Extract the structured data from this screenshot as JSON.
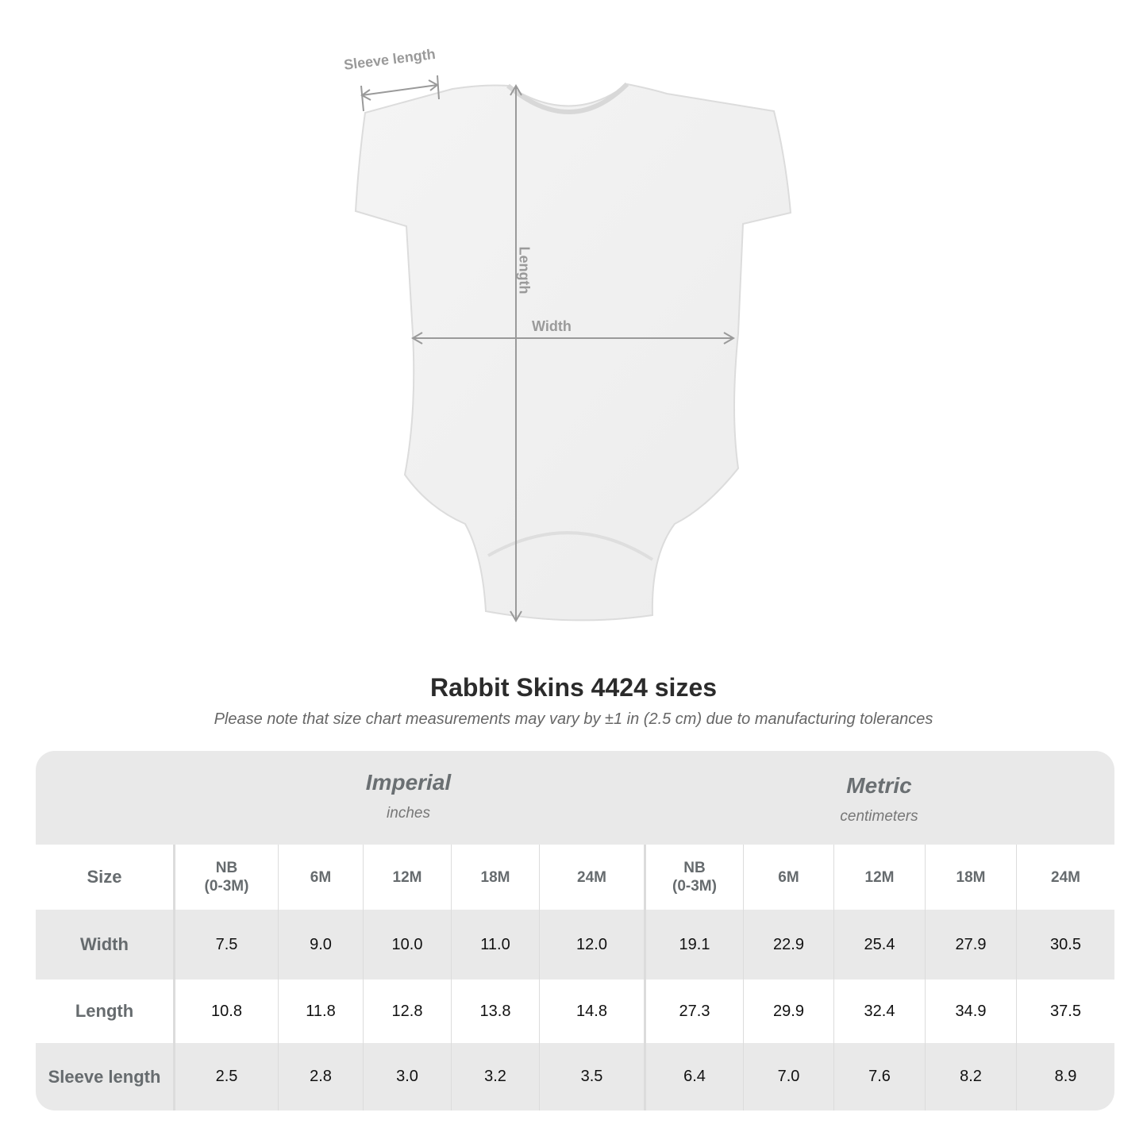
{
  "measure_labels": {
    "sleeve": "Sleeve length",
    "length": "Length",
    "width": "Width"
  },
  "title": "Rabbit Skins 4424 sizes",
  "note": "Please note that size chart measurements may vary by ±1 in (2.5 cm) due to manufacturing tolerances",
  "table": {
    "imperial": {
      "name": "Imperial",
      "unit": "inches"
    },
    "metric": {
      "name": "Metric",
      "unit": "centimeters"
    },
    "header": [
      "Size",
      "NB\n(0-3M)",
      "6M",
      "12M",
      "18M",
      "24M",
      "NB\n(0-3M)",
      "6M",
      "12M",
      "18M",
      "24M"
    ],
    "rows": [
      [
        "Width",
        "7.5",
        "9.0",
        "10.0",
        "11.0",
        "12.0",
        "19.1",
        "22.9",
        "25.4",
        "27.9",
        "30.5"
      ],
      [
        "Length",
        "10.8",
        "11.8",
        "12.8",
        "13.8",
        "14.8",
        "27.3",
        "29.9",
        "32.4",
        "34.9",
        "37.5"
      ],
      [
        "Sleeve length",
        "2.5",
        "2.8",
        "3.0",
        "3.2",
        "3.5",
        "6.4",
        "7.0",
        "7.6",
        "8.2",
        "8.9"
      ]
    ]
  },
  "colors": {
    "band": "#e9e9e9",
    "label_text": "#666b6e",
    "arrow": "#9a9a9a"
  }
}
